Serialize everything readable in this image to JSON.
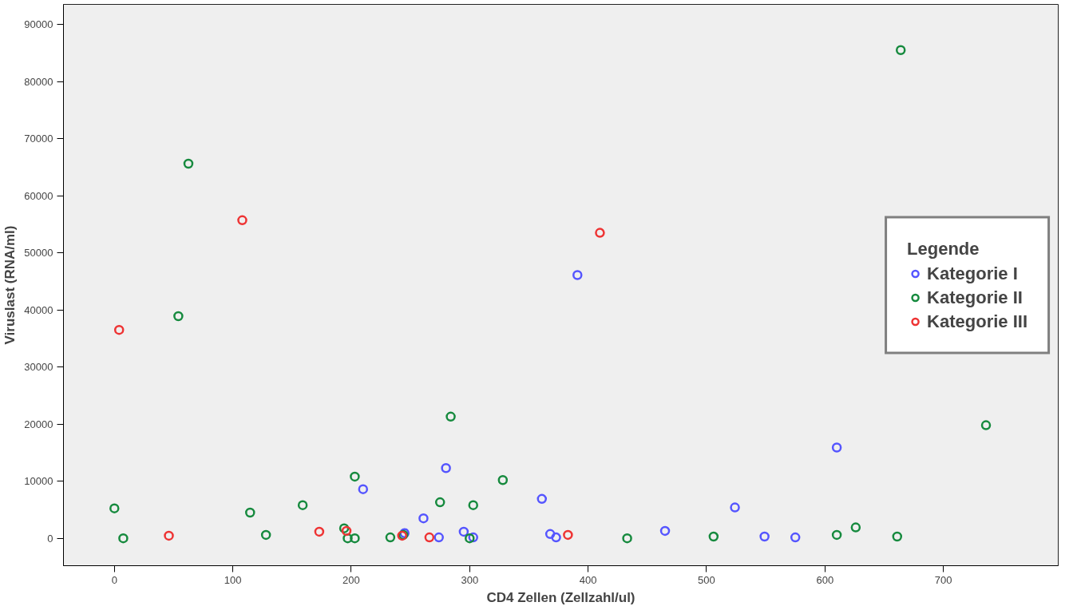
{
  "chart_data": {
    "type": "scatter",
    "xlabel": "CD4 Zellen (Zellzahl/ul)",
    "ylabel": "Viruslast (RNA/ml)",
    "legend_title": "Legende",
    "xlim": [
      -43,
      797
    ],
    "ylim": [
      -4800,
      93500
    ],
    "xticks": [
      0,
      100,
      200,
      300,
      400,
      500,
      600,
      700
    ],
    "yticks": [
      0,
      10000,
      20000,
      30000,
      40000,
      50000,
      60000,
      70000,
      80000,
      90000
    ],
    "grid": false,
    "legend": "right",
    "marker": "circle",
    "series": [
      {
        "name": "Kategorie I",
        "color": "#5555ff",
        "x": [
          210,
          261,
          274,
          280,
          245,
          295,
          303,
          361,
          368,
          373,
          391,
          465,
          524,
          549,
          575,
          610
        ],
        "values": [
          8600,
          3500,
          150,
          12300,
          900,
          1150,
          150,
          6900,
          750,
          150,
          46100,
          1300,
          5400,
          300,
          150,
          15900
        ]
      },
      {
        "name": "Kategorie II",
        "color": "#168a3e",
        "x": [
          0,
          7.5,
          62.5,
          54,
          114.6,
          128,
          159,
          194,
          197,
          203,
          203,
          233,
          244,
          275,
          284,
          300,
          303,
          328,
          433,
          506,
          610,
          626,
          661,
          664,
          736
        ],
        "values": [
          5250,
          0,
          65600,
          38900,
          4500,
          600,
          5800,
          1750,
          0,
          0,
          10800,
          150,
          600,
          6300,
          21300,
          0,
          5800,
          10200,
          0,
          300,
          600,
          1900,
          300,
          85500,
          19800
        ]
      },
      {
        "name": "Kategorie III",
        "color": "#ee3333",
        "x": [
          4,
          46,
          108,
          173,
          196,
          243,
          266,
          383,
          410
        ],
        "values": [
          36500,
          450,
          55700,
          1150,
          1300,
          450,
          150,
          600,
          53500
        ]
      }
    ]
  }
}
